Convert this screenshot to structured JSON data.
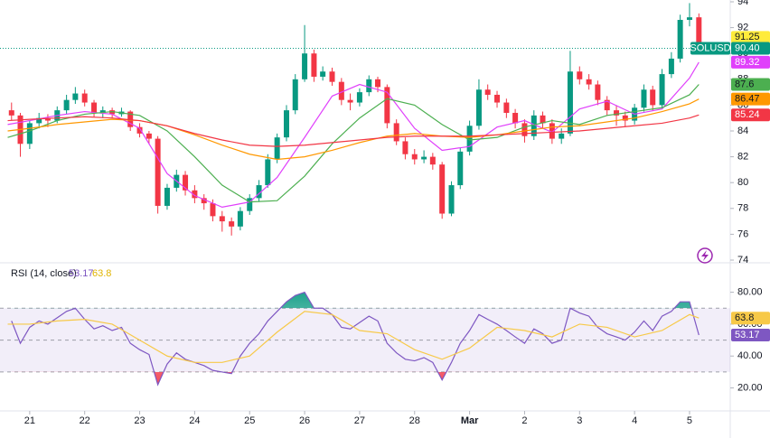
{
  "chart_data": [
    {
      "type": "candlestick",
      "symbol": "SOLUSD",
      "xlim": [
        -0.54,
        12.74
      ],
      "ylim": [
        73.86,
        94.14
      ],
      "yticks": [
        74,
        76,
        78,
        80,
        82,
        84,
        86,
        88,
        90,
        92,
        94
      ],
      "xticks": [
        {
          "value": 0,
          "label": "21"
        },
        {
          "value": 1,
          "label": "22"
        },
        {
          "value": 2,
          "label": "23"
        },
        {
          "value": 3,
          "label": "24"
        },
        {
          "value": 4,
          "label": "25"
        },
        {
          "value": 5,
          "label": "26"
        },
        {
          "value": 6,
          "label": "27"
        },
        {
          "value": 7,
          "label": "28"
        },
        {
          "value": 8,
          "label": "Mar"
        },
        {
          "value": 9,
          "label": "2"
        },
        {
          "value": 10,
          "label": "3"
        },
        {
          "value": 11,
          "label": "4"
        },
        {
          "value": 12,
          "label": "5"
        }
      ],
      "up_color": "#089981",
      "down_color": "#f23645",
      "x": [
        -0.33,
        -0.17,
        0,
        0.17,
        0.33,
        0.5,
        0.67,
        0.83,
        1,
        1.17,
        1.33,
        1.5,
        1.67,
        1.83,
        2,
        2.17,
        2.33,
        2.5,
        2.67,
        2.83,
        3,
        3.17,
        3.33,
        3.5,
        3.67,
        3.83,
        4,
        4.17,
        4.33,
        4.5,
        4.67,
        4.83,
        5,
        5.17,
        5.33,
        5.5,
        5.67,
        5.83,
        6,
        6.17,
        6.33,
        6.5,
        6.67,
        6.83,
        7,
        7.17,
        7.33,
        7.5,
        7.67,
        7.83,
        8,
        8.17,
        8.33,
        8.5,
        8.67,
        8.83,
        9,
        9.17,
        9.33,
        9.5,
        9.67,
        9.83,
        10,
        10.17,
        10.33,
        10.5,
        10.67,
        10.83,
        11,
        11.17,
        11.33,
        11.5,
        11.67,
        11.83,
        12,
        12.17
      ],
      "ohlc": [
        [
          85.6,
          86.2,
          84.8,
          85.2
        ],
        [
          85.2,
          85.4,
          82.0,
          83.0
        ],
        [
          83.0,
          84.8,
          82.6,
          84.6
        ],
        [
          84.6,
          85.4,
          84.2,
          85.0
        ],
        [
          85.0,
          85.3,
          84.3,
          84.8
        ],
        [
          84.8,
          85.9,
          84.6,
          85.6
        ],
        [
          85.6,
          86.8,
          85.3,
          86.4
        ],
        [
          86.4,
          87.4,
          86.1,
          86.9
        ],
        [
          86.9,
          87.2,
          85.9,
          86.2
        ],
        [
          86.2,
          86.4,
          85.1,
          85.4
        ],
        [
          85.4,
          85.9,
          85.0,
          85.6
        ],
        [
          85.6,
          85.8,
          85.0,
          85.3
        ],
        [
          85.3,
          85.8,
          85.1,
          85.5
        ],
        [
          85.5,
          85.6,
          84.0,
          84.3
        ],
        [
          84.3,
          84.6,
          83.5,
          83.8
        ],
        [
          83.8,
          84.0,
          83.0,
          83.4
        ],
        [
          83.4,
          83.6,
          77.6,
          78.2
        ],
        [
          78.2,
          79.9,
          77.9,
          79.6
        ],
        [
          79.6,
          81.0,
          79.3,
          80.6
        ],
        [
          80.6,
          80.9,
          79.0,
          79.4
        ],
        [
          79.4,
          79.8,
          78.4,
          78.8
        ],
        [
          78.8,
          79.1,
          77.9,
          78.4
        ],
        [
          78.4,
          78.7,
          77.0,
          77.4
        ],
        [
          77.4,
          77.8,
          76.2,
          77.0
        ],
        [
          77.0,
          77.3,
          75.9,
          76.6
        ],
        [
          76.6,
          78.1,
          76.3,
          77.8
        ],
        [
          77.8,
          79.1,
          77.5,
          78.8
        ],
        [
          78.8,
          80.2,
          78.5,
          79.8
        ],
        [
          79.8,
          82.2,
          79.6,
          81.8
        ],
        [
          81.8,
          83.8,
          81.5,
          83.5
        ],
        [
          83.5,
          86.0,
          83.2,
          85.6
        ],
        [
          85.6,
          88.4,
          85.3,
          88.0
        ],
        [
          88.0,
          92.2,
          87.8,
          90.0
        ],
        [
          90.0,
          90.3,
          87.8,
          88.2
        ],
        [
          88.2,
          89.0,
          87.9,
          88.6
        ],
        [
          88.6,
          88.9,
          87.5,
          87.8
        ],
        [
          87.8,
          88.1,
          86.0,
          86.4
        ],
        [
          86.4,
          86.9,
          85.6,
          86.2
        ],
        [
          86.2,
          87.3,
          85.9,
          87.0
        ],
        [
          87.0,
          88.3,
          86.7,
          88.0
        ],
        [
          88.0,
          88.2,
          87.0,
          87.4
        ],
        [
          87.4,
          87.6,
          84.2,
          84.6
        ],
        [
          84.6,
          84.9,
          82.9,
          83.2
        ],
        [
          83.2,
          83.5,
          81.8,
          82.2
        ],
        [
          82.2,
          82.6,
          81.4,
          81.8
        ],
        [
          81.8,
          82.5,
          81.5,
          82.0
        ],
        [
          82.0,
          82.3,
          81.0,
          81.4
        ],
        [
          81.4,
          81.6,
          77.2,
          77.6
        ],
        [
          77.6,
          80.1,
          77.4,
          79.8
        ],
        [
          79.8,
          82.7,
          79.5,
          82.4
        ],
        [
          82.4,
          84.8,
          82.1,
          84.4
        ],
        [
          84.4,
          88.0,
          84.1,
          87.2
        ],
        [
          87.2,
          87.6,
          86.4,
          86.8
        ],
        [
          86.8,
          87.1,
          85.8,
          86.2
        ],
        [
          86.2,
          86.5,
          85.0,
          85.4
        ],
        [
          85.4,
          85.7,
          84.2,
          84.6
        ],
        [
          84.6,
          84.9,
          83.1,
          83.6
        ],
        [
          83.6,
          85.6,
          83.3,
          85.2
        ],
        [
          85.2,
          85.5,
          84.2,
          84.6
        ],
        [
          84.6,
          84.9,
          83.0,
          83.4
        ],
        [
          83.4,
          84.2,
          83.0,
          83.8
        ],
        [
          83.8,
          90.2,
          83.6,
          88.6
        ],
        [
          88.6,
          89.0,
          87.6,
          88.0
        ],
        [
          88.0,
          88.4,
          87.2,
          87.6
        ],
        [
          87.6,
          87.9,
          86.0,
          86.4
        ],
        [
          86.4,
          86.7,
          85.2,
          85.6
        ],
        [
          85.6,
          86.0,
          84.4,
          85.2
        ],
        [
          85.2,
          85.5,
          84.3,
          84.8
        ],
        [
          84.8,
          86.1,
          84.5,
          85.8
        ],
        [
          85.8,
          87.6,
          85.5,
          87.2
        ],
        [
          87.2,
          87.5,
          85.6,
          86.0
        ],
        [
          86.0,
          88.8,
          85.8,
          88.4
        ],
        [
          88.4,
          90.1,
          88.1,
          89.6
        ],
        [
          89.6,
          93.0,
          89.3,
          92.6
        ],
        [
          92.6,
          93.9,
          92.1,
          92.8
        ],
        [
          92.8,
          93.1,
          90.2,
          90.4
        ]
      ],
      "last_value_label": "90.40",
      "tags": [
        {
          "value": 91.25,
          "label": "91.25",
          "color": "#ffeb3b"
        }
      ],
      "lines": {
        "x": [
          -0.4,
          0,
          0.5,
          1,
          1.5,
          2,
          2.5,
          3,
          3.5,
          4,
          4.5,
          5,
          5.5,
          6,
          6.5,
          7,
          7.5,
          8,
          8.5,
          9,
          9.5,
          10,
          10.5,
          11,
          11.5,
          12,
          12.17
        ],
        "series": [
          {
            "color": "#e040fb",
            "values": [
              84.5,
              84.8,
              85.2,
              85.5,
              85.3,
              84.2,
              80.7,
              79.0,
              78.1,
              78.5,
              80.4,
              83.5,
              86.7,
              87.6,
              87.0,
              84.2,
              82.5,
              82.8,
              84.3,
              84.8,
              83.9,
              85.7,
              86.3,
              85.3,
              85.7,
              88.1,
              89.32
            ]
          },
          {
            "color": "#4caf50",
            "values": [
              83.5,
              84.0,
              84.8,
              85.3,
              85.5,
              85.2,
              84.0,
              82.0,
              79.8,
              78.5,
              78.6,
              80.5,
              83.0,
              85.0,
              86.5,
              86.0,
              84.5,
              83.3,
              83.5,
              84.3,
              84.8,
              84.5,
              85.2,
              85.5,
              85.8,
              86.8,
              87.6
            ]
          },
          {
            "color": "#ff9800",
            "values": [
              84.0,
              84.2,
              84.5,
              84.7,
              84.9,
              84.8,
              84.4,
              83.7,
              82.9,
              82.2,
              81.8,
              82.0,
              82.5,
              83.1,
              83.6,
              83.8,
              83.6,
              83.5,
              83.7,
              84.0,
              84.3,
              84.4,
              84.7,
              85.0,
              85.5,
              86.1,
              86.47
            ]
          },
          {
            "color": "#f23645",
            "values": [
              84.8,
              84.9,
              85.0,
              85.1,
              85.0,
              84.8,
              84.4,
              83.8,
              83.3,
              82.9,
              82.8,
              82.9,
              83.1,
              83.3,
              83.5,
              83.6,
              83.6,
              83.6,
              83.7,
              83.8,
              83.9,
              84.0,
              84.2,
              84.4,
              84.6,
              85.0,
              85.24
            ]
          }
        ]
      }
    },
    {
      "type": "line",
      "title": "RSI (14, close)",
      "ylim": [
        5.6,
        97.9
      ],
      "yticks": [
        {
          "value": 20,
          "label": "20.00"
        },
        {
          "value": 40,
          "label": "40.00"
        },
        {
          "value": 60,
          "label": "60.00"
        },
        {
          "value": 80,
          "label": "80.00"
        }
      ],
      "levels": [
        30,
        50,
        70
      ],
      "band_color": "#7e57c2",
      "series": [
        {
          "color": "#7e57c2",
          "values": [
            62,
            48,
            58,
            62,
            60,
            64,
            68,
            70,
            63,
            57,
            59,
            56,
            58,
            48,
            44,
            41,
            22,
            35,
            42,
            38,
            36,
            34,
            31,
            30,
            29,
            40,
            48,
            54,
            62,
            68,
            74,
            78,
            80,
            70,
            70,
            66,
            58,
            57,
            61,
            65,
            62,
            48,
            42,
            38,
            37,
            39,
            36,
            25,
            36,
            48,
            56,
            66,
            63,
            60,
            56,
            52,
            48,
            57,
            54,
            48,
            50,
            70,
            67,
            65,
            58,
            54,
            52,
            50,
            55,
            62,
            56,
            65,
            68,
            74,
            74,
            53.17
          ]
        },
        {
          "color": "#f7c948",
          "values": [
            60,
            60,
            62,
            63,
            60,
            50,
            40,
            36,
            36,
            40,
            55,
            68,
            66,
            56,
            54,
            44,
            38,
            45,
            58,
            56,
            52,
            60,
            58,
            52,
            56,
            66,
            63.8
          ]
        }
      ]
    }
  ]
}
